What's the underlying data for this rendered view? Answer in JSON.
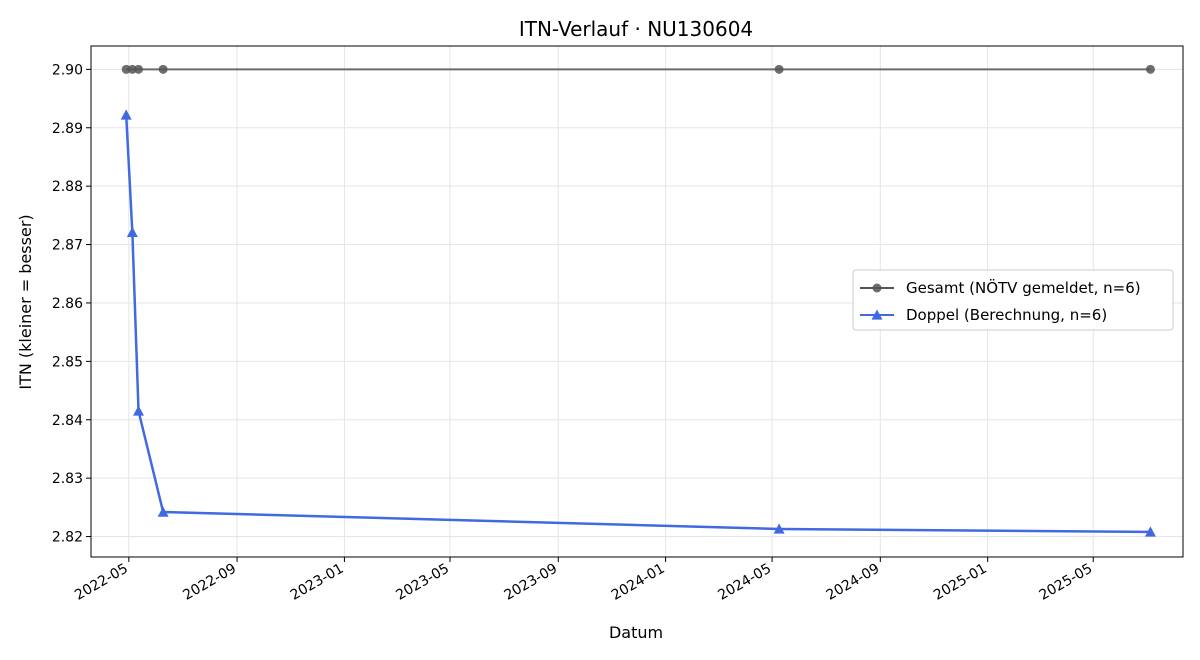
{
  "chart_data": {
    "type": "line",
    "title": "ITN-Verlauf · NU130604",
    "xlabel": "Datum",
    "ylabel": "ITN  (kleiner = besser)",
    "x_axis_type": "date",
    "xlim": [
      "2022-03-19",
      "2025-08-11"
    ],
    "ylim": [
      2.8165,
      2.904
    ],
    "grid": true,
    "legend_position": "center-right",
    "x_ticks": [
      "2022-05",
      "2022-09",
      "2023-01",
      "2023-05",
      "2023-09",
      "2024-01",
      "2024-05",
      "2024-09",
      "2025-01",
      "2025-05"
    ],
    "y_ticks": [
      "2.82",
      "2.83",
      "2.84",
      "2.85",
      "2.86",
      "2.87",
      "2.88",
      "2.89",
      "2.90"
    ],
    "series": [
      {
        "name": "Gesamt (NÖTV gemeldet, n=6)",
        "color": "#555555",
        "marker": "circle",
        "x": [
          "2022-04-28",
          "2022-05-05",
          "2022-05-12",
          "2022-06-09",
          "2024-05-09",
          "2025-07-05"
        ],
        "y": [
          2.9,
          2.9,
          2.9,
          2.9,
          2.9,
          2.9
        ]
      },
      {
        "name": "Doppel (Berechnung, n=6)",
        "color": "#4169e1",
        "marker": "triangle",
        "x": [
          "2022-04-28",
          "2022-05-05",
          "2022-05-12",
          "2022-06-09",
          "2024-05-09",
          "2025-07-05"
        ],
        "y": [
          2.8922,
          2.8721,
          2.8415,
          2.8242,
          2.8213,
          2.8208
        ]
      }
    ]
  }
}
